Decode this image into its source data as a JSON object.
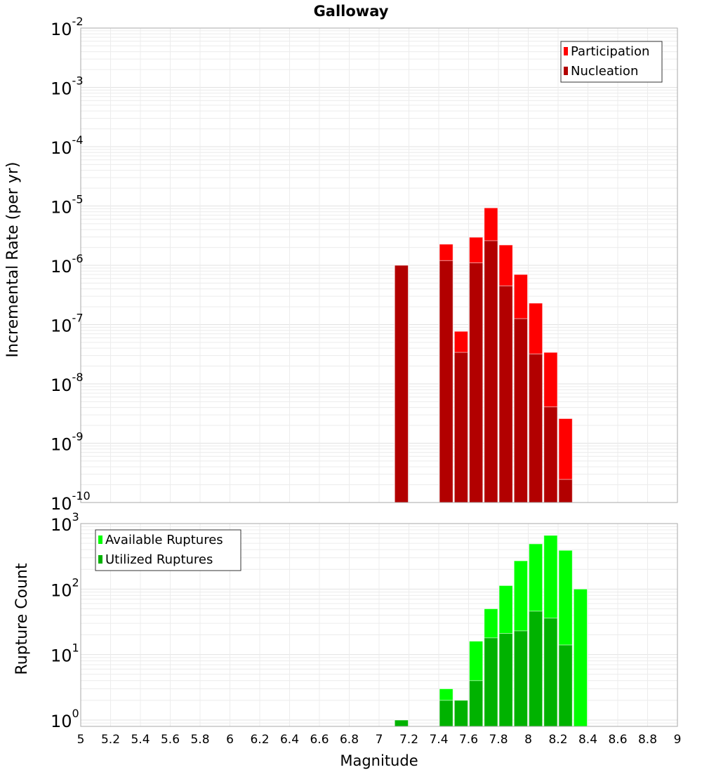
{
  "chart_data": [
    {
      "type": "bar",
      "title": "Galloway",
      "xlabel": "Magnitude",
      "ylabel": "Incremental Rate (per yr)",
      "yscale": "log",
      "xlim": [
        5,
        9
      ],
      "ylim": [
        1e-10,
        0.01
      ],
      "bin_width": 0.1,
      "grid": true,
      "legend_position": "top-right",
      "x": [
        7.15,
        7.45,
        7.55,
        7.65,
        7.75,
        7.85,
        7.95,
        8.05,
        8.15,
        8.25
      ],
      "series": [
        {
          "name": "Participation",
          "color": "#ff0000",
          "values": [
            1e-06,
            2.27e-06,
            7.7e-08,
            2.97e-06,
            9.3e-06,
            2.2e-06,
            7e-07,
            2.3e-07,
            3.4e-08,
            2.6e-09
          ]
        },
        {
          "name": "Nucleation",
          "color": "#b20000",
          "values": [
            1e-06,
            1.2e-06,
            3.4e-08,
            1.1e-06,
            2.6e-06,
            4.5e-07,
            1.26e-07,
            3.2e-08,
            4.1e-09,
            2.45e-10
          ]
        }
      ],
      "yticks": [
        {
          "base": "10",
          "exp": "-2",
          "value": 0.01
        },
        {
          "base": "10",
          "exp": "-3",
          "value": 0.001
        },
        {
          "base": "10",
          "exp": "-4",
          "value": 0.0001
        },
        {
          "base": "10",
          "exp": "-5",
          "value": 1e-05
        },
        {
          "base": "10",
          "exp": "-6",
          "value": 1e-06
        },
        {
          "base": "10",
          "exp": "-7",
          "value": 1e-07
        },
        {
          "base": "10",
          "exp": "-8",
          "value": 1e-08
        },
        {
          "base": "10",
          "exp": "-9",
          "value": 1e-09
        },
        {
          "base": "10",
          "exp": "-10",
          "value": 1e-10
        }
      ]
    },
    {
      "type": "bar",
      "xlabel": "Magnitude",
      "ylabel": "Rupture Count",
      "yscale": "log",
      "xlim": [
        5,
        9
      ],
      "ylim": [
        0.8,
        1000
      ],
      "bin_width": 0.1,
      "grid": true,
      "legend_position": "top-left",
      "x": [
        7.15,
        7.45,
        7.55,
        7.65,
        7.75,
        7.85,
        7.95,
        8.05,
        8.15,
        8.25,
        8.35
      ],
      "series": [
        {
          "name": "Available Ruptures",
          "color": "#00ff00",
          "values": [
            1,
            3,
            2,
            16,
            50,
            113,
            270,
            490,
            660,
            390,
            100
          ]
        },
        {
          "name": "Utilized Ruptures",
          "color": "#00b200",
          "values": [
            1,
            2,
            2,
            4,
            18,
            21,
            23,
            46,
            36,
            14,
            0
          ]
        }
      ],
      "yticks": [
        {
          "base": "10",
          "exp": "3",
          "value": 1000
        },
        {
          "base": "10",
          "exp": "2",
          "value": 100
        },
        {
          "base": "10",
          "exp": "1",
          "value": 10
        },
        {
          "base": "10",
          "exp": "0",
          "value": 1
        }
      ],
      "xticks": [
        "5",
        "5.2",
        "5.4",
        "5.6",
        "5.8",
        "6",
        "6.2",
        "6.4",
        "6.6",
        "6.8",
        "7",
        "7.2",
        "7.4",
        "7.6",
        "7.8",
        "8",
        "8.2",
        "8.4",
        "8.6",
        "8.8",
        "9"
      ]
    }
  ]
}
